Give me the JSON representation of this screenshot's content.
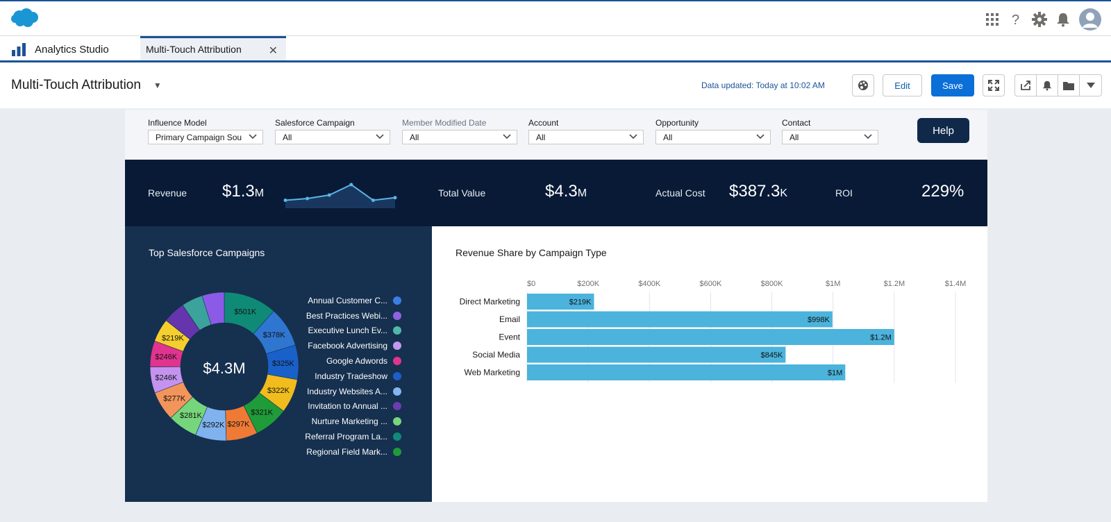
{
  "app": {
    "name": "Analytics Studio"
  },
  "tab": {
    "label": "Multi-Touch Attribution",
    "close": "✕"
  },
  "page": {
    "title": "Multi-Touch Attribution",
    "updated": "Data updated: Today at 10:02 AM",
    "edit_label": "Edit",
    "save_label": "Save"
  },
  "filters": [
    {
      "label": "Influence Model",
      "value": "Primary Campaign Sou"
    },
    {
      "label": "Salesforce Campaign",
      "value": "All"
    },
    {
      "label": "Member Modified Date",
      "value": "All"
    },
    {
      "label": "Account",
      "value": "All"
    },
    {
      "label": "Opportunity",
      "value": "All"
    },
    {
      "label": "Contact",
      "value": "All"
    }
  ],
  "help_label": "Help",
  "kpis": {
    "revenue_label": "Revenue",
    "revenue_value": "$1.3",
    "revenue_unit": "M",
    "total_value_label": "Total Value",
    "total_value_value": "$4.3",
    "total_value_unit": "M",
    "actual_cost_label": "Actual Cost",
    "actual_cost_value": "$387.3",
    "actual_cost_unit": "K",
    "roi_label": "ROI",
    "roi_value": "229%"
  },
  "colors": {
    "brand": "#1b5297",
    "accent_blue": "#0b6fd8",
    "bar": "#4bb3dc",
    "dark_band": "#081a36",
    "panel_dark": "#16304f"
  },
  "chart_data": [
    {
      "type": "line",
      "title": "Revenue sparkline",
      "x": [
        1,
        2,
        3,
        4,
        5,
        6
      ],
      "values": [
        3,
        4,
        6,
        12,
        3,
        4.5
      ]
    },
    {
      "type": "pie",
      "title": "Top Salesforce Campaigns",
      "center_label": "$4.3M",
      "slices": [
        {
          "label": "$501K",
          "value": 501,
          "color": "#0f8a77"
        },
        {
          "label": "$378K",
          "value": 378,
          "color": "#2f76d1"
        },
        {
          "label": "$325K",
          "value": 325,
          "color": "#1a60c9"
        },
        {
          "label": "$322K",
          "value": 322,
          "color": "#f0bc1e"
        },
        {
          "label": "$321K",
          "value": 321,
          "color": "#1f9b3a"
        },
        {
          "label": "$297K",
          "value": 297,
          "color": "#ef7a35"
        },
        {
          "label": "$292K",
          "value": 292,
          "color": "#7fb2ef"
        },
        {
          "label": "$281K",
          "value": 281,
          "color": "#76d67b"
        },
        {
          "label": "$277K",
          "value": 277,
          "color": "#f3955b"
        },
        {
          "label": "$246K",
          "value": 246,
          "color": "#c493ef"
        },
        {
          "label": "$246K",
          "value": 246,
          "color": "#e0348e"
        },
        {
          "label": "$219K",
          "value": 219,
          "color": "#f4cf2e"
        },
        {
          "label": "",
          "value": 210,
          "color": "#6435ad"
        },
        {
          "label": "",
          "value": 200,
          "color": "#3ba39b"
        },
        {
          "label": "",
          "value": 210,
          "color": "#8b5be8"
        }
      ],
      "legend": [
        {
          "name": "Annual Customer C...",
          "color": "#3b7ee3"
        },
        {
          "name": "Best Practices Webi...",
          "color": "#8e62e3"
        },
        {
          "name": "Executive Lunch Ev...",
          "color": "#4fb8a8"
        },
        {
          "name": "Facebook Advertising",
          "color": "#c397ef"
        },
        {
          "name": "Google Adwords",
          "color": "#e0348e"
        },
        {
          "name": "Industry Tradeshow",
          "color": "#1d5ec8"
        },
        {
          "name": "Industry Websites A...",
          "color": "#84b6ef"
        },
        {
          "name": "Invitation to Annual ...",
          "color": "#6a3db0"
        },
        {
          "name": "Nurture Marketing ...",
          "color": "#76d67b"
        },
        {
          "name": "Referral Program La...",
          "color": "#0f8a77"
        },
        {
          "name": "Regional Field Mark...",
          "color": "#1f9b3a"
        }
      ]
    },
    {
      "type": "bar",
      "orientation": "horizontal",
      "title": "Revenue Share by Campaign Type",
      "categories": [
        "Direct Marketing",
        "Email",
        "Event",
        "Social Media",
        "Web Marketing"
      ],
      "values": [
        219,
        998,
        1200,
        845,
        1040
      ],
      "value_labels": [
        "$219K",
        "$998K",
        "$1.2M",
        "$845K",
        "$1M"
      ],
      "xlim": [
        0,
        1400
      ],
      "tick_values": [
        0,
        200,
        400,
        600,
        800,
        1000,
        1200,
        1400
      ],
      "tick_labels": [
        "$0",
        "$200K",
        "$400K",
        "$600K",
        "$800K",
        "$1M",
        "$1.2M",
        "$1.4M"
      ]
    }
  ]
}
